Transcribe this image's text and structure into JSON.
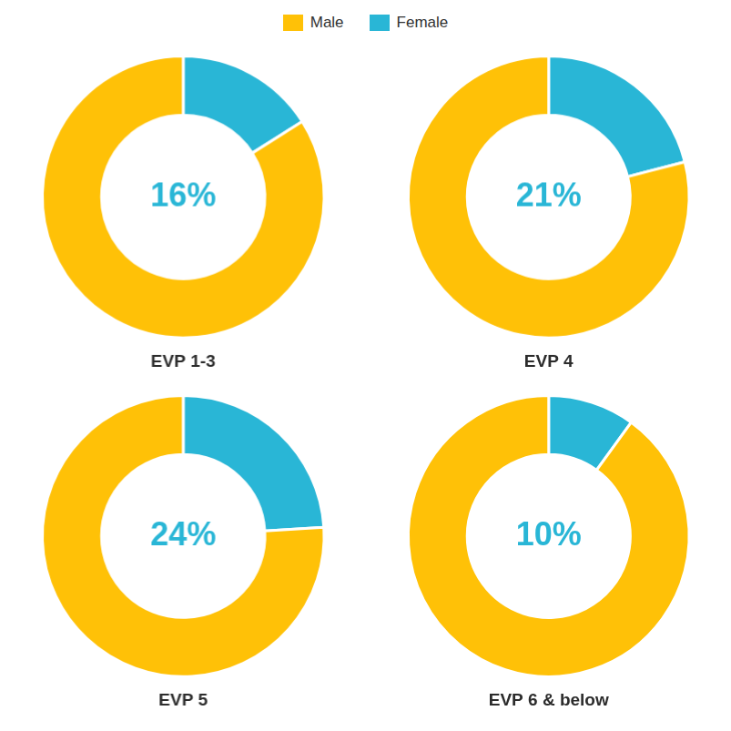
{
  "chart_data": [
    {
      "type": "doughnut",
      "title": "EVP 1-3",
      "categories": [
        "Female",
        "Male"
      ],
      "values": [
        16,
        84
      ],
      "colors": [
        "#29B6D6",
        "#FFC107"
      ],
      "annotation": "16%",
      "legend": "top"
    },
    {
      "type": "doughnut",
      "title": "EVP 4",
      "categories": [
        "Female",
        "Male"
      ],
      "values": [
        21,
        79
      ],
      "colors": [
        "#29B6D6",
        "#FFC107"
      ],
      "annotation": "21%"
    },
    {
      "type": "doughnut",
      "title": "EVP 5",
      "categories": [
        "Female",
        "Male"
      ],
      "values": [
        24,
        76
      ],
      "colors": [
        "#29B6D6",
        "#FFC107"
      ],
      "annotation": "24%"
    },
    {
      "type": "doughnut",
      "title": "EVP 6 & below",
      "categories": [
        "Female",
        "Male"
      ],
      "values": [
        10,
        90
      ],
      "colors": [
        "#29B6D6",
        "#FFC107"
      ],
      "annotation": "10%"
    }
  ]
}
